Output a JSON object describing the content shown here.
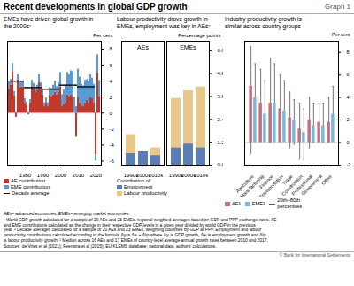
{
  "title": "Recent developments in global GDP growth",
  "graph_label": "Graph 1",
  "notes": [
    "AEs= advanced economies; EMEs= emerging market economies.",
    "¹ World GDP growth calculated for a sample of 20 AEs and 23 EMEs, regional weighted averages based on GDP and PPP exchange rates. AE\nand EME contributions calculated as the change in their respective GDP levels in a given year divided by world GDP in the previous\nyear.   ² Decade averages calculated for a sample of 20 AEs and 23 EMEs, weighting countries by GDP at PPP. Employment and labour\nproductivity contributions calculated according to the formula Δyᵢ = Δeᵢ + Δlpᵢ where Δyᵢ is GDP growth, Δeᵢ is employment growth and Δlpᵢ\nis labour productivity growth.   ³ Median across 16 AEs and 17 EMEs of country-level average annual growth rates between 2010 and 2017."
  ],
  "sources": "Sources: de Vries et al (2021); Feenstra et al (2015); EU KLEMS database; national data; authors’ calculations.",
  "credit": "© Bank for International Settlements",
  "chart_data": [
    {
      "type": "bar",
      "title": "EMEs have driven global growth in\nthe 2000s¹",
      "ylabel": "Per cent",
      "stacked": true,
      "grid": false,
      "legend": "bottom",
      "x": [
        1971,
        1972,
        1973,
        1974,
        1975,
        1976,
        1977,
        1978,
        1979,
        1980,
        1981,
        1982,
        1983,
        1984,
        1985,
        1986,
        1987,
        1988,
        1989,
        1990,
        1991,
        1992,
        1993,
        1994,
        1995,
        1996,
        1997,
        1998,
        1999,
        2000,
        2001,
        2002,
        2003,
        2004,
        2005,
        2006,
        2007,
        2008,
        2009,
        2010,
        2011,
        2012,
        2013,
        2014,
        2015,
        2016,
        2017,
        2018,
        2019,
        2020,
        2021,
        2022
      ],
      "xticks": [
        1980,
        1990,
        2000,
        2010,
        2020
      ],
      "ylim": [
        -6.5,
        9
      ],
      "yticks": [
        -6,
        -4,
        -2,
        0,
        2,
        4,
        6,
        8
      ],
      "series": [
        {
          "name": "AE contribution",
          "color": "#c0392b",
          "values": [
            3.0,
            3.5,
            5.2,
            2.2,
            -0.5,
            4.2,
            3.2,
            3.3,
            3.3,
            1.3,
            1.0,
            -0.2,
            1.3,
            3.3,
            3.0,
            2.6,
            2.8,
            3.8,
            3.0,
            2.3,
            0.8,
            1.3,
            0.8,
            2.3,
            2.1,
            2.3,
            2.6,
            2.3,
            2.6,
            3.3,
            0.8,
            1.1,
            1.3,
            2.3,
            2.1,
            2.3,
            2.0,
            0.0,
            -3.0,
            2.0,
            1.3,
            0.8,
            0.8,
            1.3,
            1.6,
            1.3,
            2.0,
            1.8,
            1.3,
            -5.2,
            5.0,
            2.1
          ]
        },
        {
          "name": "EME contribution",
          "color": "#5b9bd5",
          "values": [
            0.8,
            0.7,
            1.0,
            0.5,
            0.2,
            0.6,
            0.6,
            0.7,
            0.7,
            0.5,
            0.4,
            0.2,
            0.4,
            0.8,
            0.7,
            0.6,
            0.7,
            1.0,
            0.8,
            0.6,
            0.5,
            0.6,
            0.5,
            0.9,
            1.0,
            1.2,
            1.4,
            1.0,
            1.2,
            1.8,
            1.5,
            1.8,
            2.2,
            2.8,
            2.7,
            3.0,
            3.2,
            2.0,
            0.8,
            3.5,
            3.2,
            2.8,
            2.6,
            2.8,
            2.6,
            2.6,
            2.8,
            2.6,
            2.3,
            -0.8,
            2.3,
            2.0
          ]
        }
      ],
      "decade_averages": {
        "name": "Decade average",
        "type": "line",
        "color": "#111111",
        "ranges": [
          {
            "from": 1971,
            "to": 1979,
            "value": 4.0
          },
          {
            "from": 1980,
            "to": 1989,
            "value": 3.2
          },
          {
            "from": 1990,
            "to": 1999,
            "value": 3.0
          },
          {
            "from": 2000,
            "to": 2009,
            "value": 3.5
          },
          {
            "from": 2010,
            "to": 2019,
            "value": 3.3
          }
        ]
      }
    },
    {
      "type": "bar",
      "title": "Labour productivity drove growth in\nEMEs, employment was key in AEs²",
      "ylabel": "Percentage points",
      "stacked": false,
      "grid": false,
      "legend": "bottom",
      "legend_title": "Contribution of:",
      "categories": [
        "1990s",
        "2000s",
        "2010s",
        "1990s",
        "2000s",
        "2010s"
      ],
      "groups": [
        {
          "name": "AEs",
          "size": 3
        },
        {
          "name": "EMEs",
          "size": 3
        }
      ],
      "ylim": [
        0,
        6.5
      ],
      "yticks": [
        {
          "value": 0,
          "label": "0.0"
        },
        1.2,
        2.4,
        3.6,
        4.8,
        {
          "value": 6,
          "label": "6.0"
        }
      ],
      "series": [
        {
          "name": "Employment",
          "color": "#5b7db5",
          "values": [
            0.6,
            0.7,
            0.5,
            0.9,
            1.1,
            0.9
          ]
        },
        {
          "name": "Labour productivity",
          "color": "#e8c88a",
          "values": [
            1.6,
            0.6,
            0.9,
            3.5,
            3.9,
            4.1
          ]
        }
      ]
    },
    {
      "type": "bar",
      "title": "Industry productivity growth is\nsimilar across country groups",
      "ylabel": "Per cent",
      "stacked": false,
      "grid": false,
      "legend": "bottom",
      "categories": [
        "Agriculture",
        "Manufacturing",
        "Finance",
        "Transportation",
        "Trade",
        "Construction",
        "Professional",
        "Government",
        "Other"
      ],
      "ylim": [
        -2,
        9
      ],
      "yticks": [
        -2,
        0,
        2,
        4,
        6,
        8
      ],
      "error_bars": {
        "name": "20th–80th\npercentiles",
        "color": "#555555"
      },
      "series": [
        {
          "name": "AE³",
          "color": "#c07080",
          "values": [
            5.0,
            3.5,
            3.5,
            3.0,
            2.2,
            1.2,
            2.0,
            1.8,
            1.8
          ],
          "p20": [
            -1.0,
            0.5,
            0.0,
            0.5,
            -0.5,
            -1.5,
            -0.5,
            0.0,
            0.0
          ],
          "p80": [
            8.5,
            6.5,
            7.5,
            6.0,
            4.5,
            3.5,
            4.0,
            3.5,
            4.0
          ]
        },
        {
          "name": "EME³",
          "color": "#7ab8d8",
          "values": [
            4.0,
            2.5,
            3.5,
            2.8,
            2.0,
            0.9,
            1.5,
            1.5,
            2.5
          ],
          "p20": [
            1.5,
            0.5,
            0.5,
            0.5,
            -0.2,
            -1.5,
            0.0,
            0.0,
            0.5
          ],
          "p80": [
            7.0,
            5.5,
            7.0,
            5.5,
            3.8,
            3.0,
            3.5,
            3.5,
            5.0
          ]
        }
      ]
    }
  ]
}
